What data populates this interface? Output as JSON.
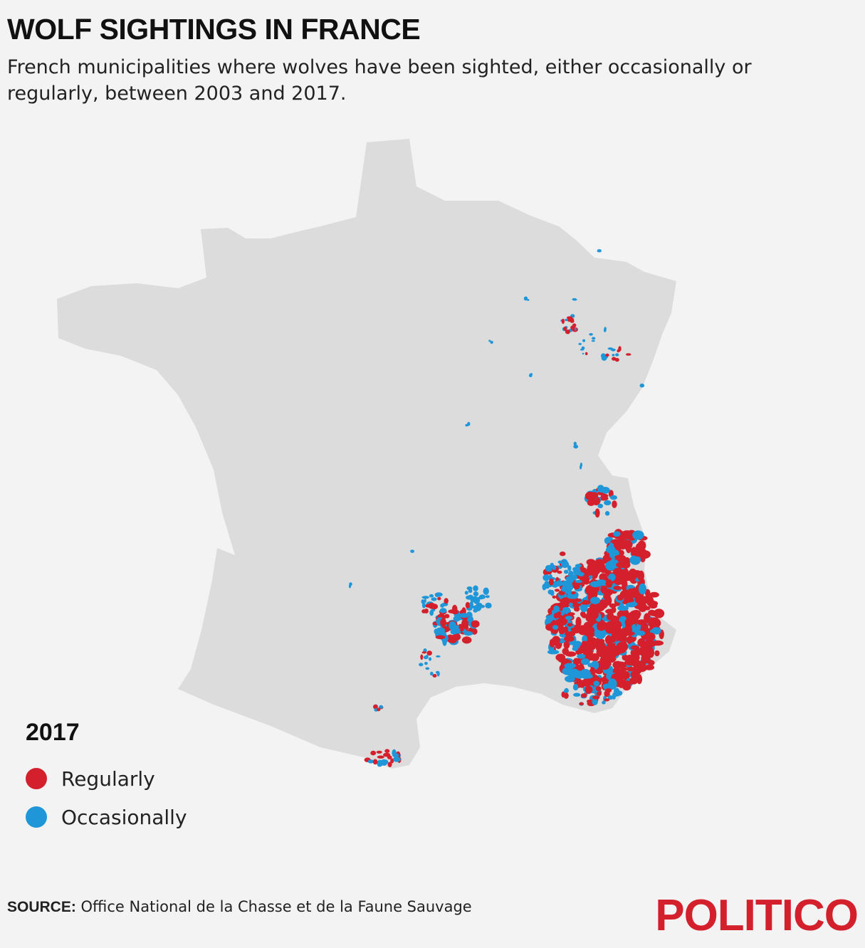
{
  "header": {
    "title": "WOLF SIGHTINGS IN FRANCE",
    "subtitle": "French municipalities where wolves have been sighted, either occasionally or regularly, between 2003 and 2017."
  },
  "map": {
    "region": "France",
    "land_color": "#dcdcdc",
    "background_color": "#f3f3f3"
  },
  "legend": {
    "title": "2017",
    "items": [
      {
        "label": "Regularly",
        "color": "#d4202c"
      },
      {
        "label": "Occasionally",
        "color": "#1e96d8"
      }
    ]
  },
  "footer": {
    "source_label": "SOURCE:",
    "source_text": "Office National de la Chasse et de la Faune Sauvage",
    "logo": "POLITICO"
  }
}
